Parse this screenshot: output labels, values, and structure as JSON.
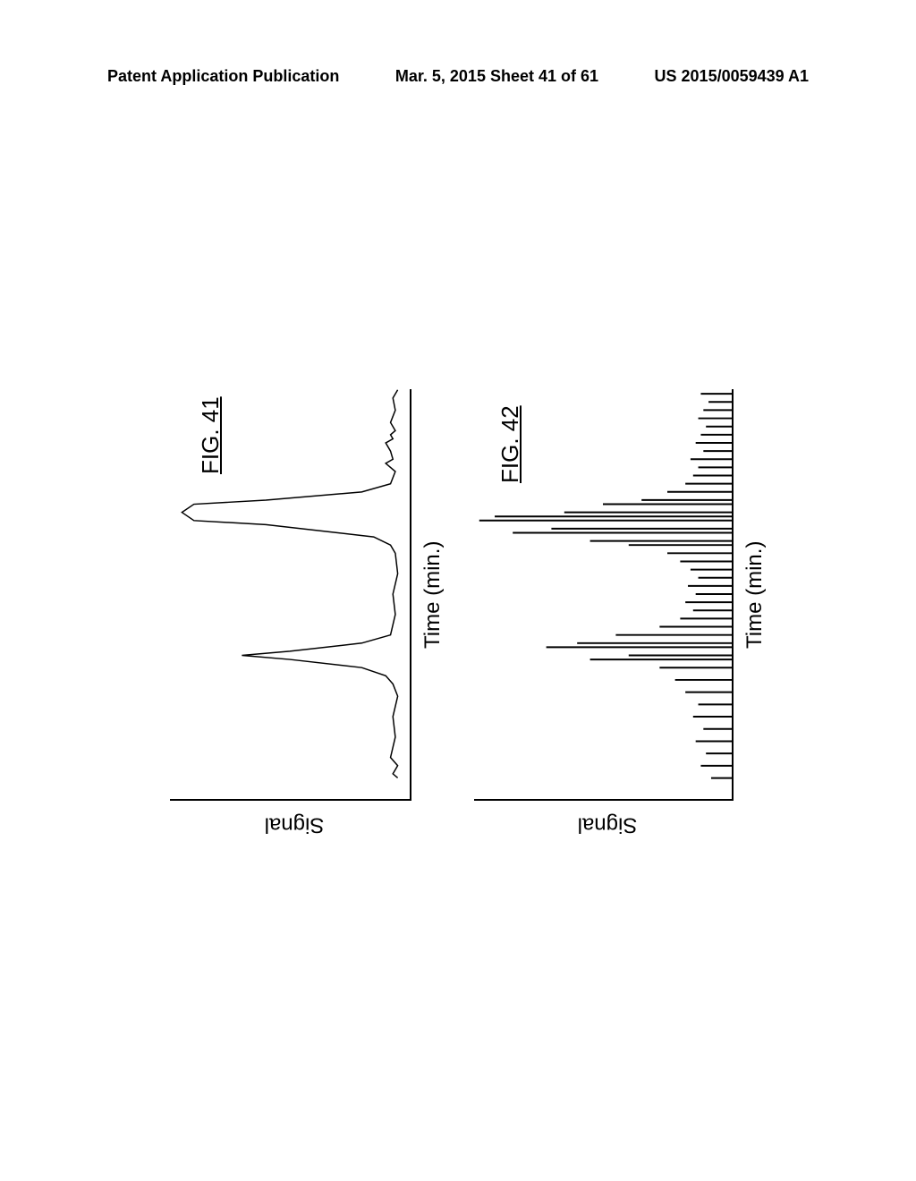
{
  "header": {
    "left": "Patent Application Publication",
    "center": "Mar. 5, 2015   Sheet 41 of 61",
    "right": "US 2015/0059439 A1"
  },
  "chart1": {
    "type": "line",
    "title": "FIG. 41",
    "ylabel": "Signal",
    "xlabel": "Time (min.)",
    "line_color": "#000000",
    "line_width": 1.5,
    "background_color": "#ffffff",
    "axis_color": "#000000",
    "axis_width": 2.5,
    "label_fontsize": 24,
    "title_fontsize": 26,
    "xlim": [
      0,
      100
    ],
    "ylim": [
      0,
      100
    ],
    "data_points": [
      [
        5,
        95
      ],
      [
        6,
        93
      ],
      [
        8,
        95
      ],
      [
        10,
        92
      ],
      [
        15,
        94
      ],
      [
        20,
        93
      ],
      [
        25,
        95
      ],
      [
        28,
        93
      ],
      [
        30,
        90
      ],
      [
        32,
        80
      ],
      [
        34,
        50
      ],
      [
        35,
        30
      ],
      [
        36,
        50
      ],
      [
        38,
        80
      ],
      [
        40,
        92
      ],
      [
        45,
        94
      ],
      [
        50,
        93
      ],
      [
        55,
        95
      ],
      [
        60,
        94
      ],
      [
        62,
        92
      ],
      [
        64,
        85
      ],
      [
        65,
        70
      ],
      [
        67,
        40
      ],
      [
        68,
        10
      ],
      [
        70,
        5
      ],
      [
        72,
        10
      ],
      [
        73,
        40
      ],
      [
        75,
        80
      ],
      [
        77,
        92
      ],
      [
        80,
        94
      ],
      [
        82,
        90
      ],
      [
        83,
        93
      ],
      [
        85,
        92
      ],
      [
        87,
        90
      ],
      [
        88,
        93
      ],
      [
        89,
        92
      ],
      [
        90,
        94
      ],
      [
        92,
        92
      ],
      [
        95,
        94
      ],
      [
        98,
        93
      ],
      [
        100,
        95
      ]
    ]
  },
  "chart2": {
    "type": "mass_spectrum",
    "title": "FIG. 42",
    "ylabel": "Signal",
    "xlabel": "Time (min.)",
    "line_color": "#000000",
    "line_width": 2,
    "background_color": "#ffffff",
    "axis_color": "#000000",
    "axis_width": 2.5,
    "label_fontsize": 24,
    "title_fontsize": 26,
    "xlim": [
      0,
      100
    ],
    "ylim": [
      0,
      100
    ],
    "peaks": [
      [
        5,
        8
      ],
      [
        8,
        12
      ],
      [
        11,
        10
      ],
      [
        14,
        14
      ],
      [
        17,
        11
      ],
      [
        20,
        15
      ],
      [
        23,
        13
      ],
      [
        26,
        18
      ],
      [
        29,
        22
      ],
      [
        32,
        28
      ],
      [
        34,
        55
      ],
      [
        35,
        40
      ],
      [
        37,
        72
      ],
      [
        38,
        60
      ],
      [
        40,
        45
      ],
      [
        42,
        28
      ],
      [
        44,
        20
      ],
      [
        46,
        15
      ],
      [
        48,
        18
      ],
      [
        50,
        14
      ],
      [
        52,
        17
      ],
      [
        54,
        13
      ],
      [
        56,
        16
      ],
      [
        58,
        20
      ],
      [
        60,
        25
      ],
      [
        62,
        40
      ],
      [
        63,
        55
      ],
      [
        65,
        85
      ],
      [
        66,
        70
      ],
      [
        68,
        98
      ],
      [
        69,
        92
      ],
      [
        70,
        65
      ],
      [
        72,
        50
      ],
      [
        73,
        35
      ],
      [
        75,
        25
      ],
      [
        77,
        18
      ],
      [
        79,
        15
      ],
      [
        81,
        13
      ],
      [
        83,
        16
      ],
      [
        85,
        11
      ],
      [
        87,
        14
      ],
      [
        89,
        12
      ],
      [
        91,
        10
      ],
      [
        93,
        13
      ],
      [
        95,
        11
      ],
      [
        97,
        9
      ],
      [
        99,
        12
      ]
    ]
  }
}
